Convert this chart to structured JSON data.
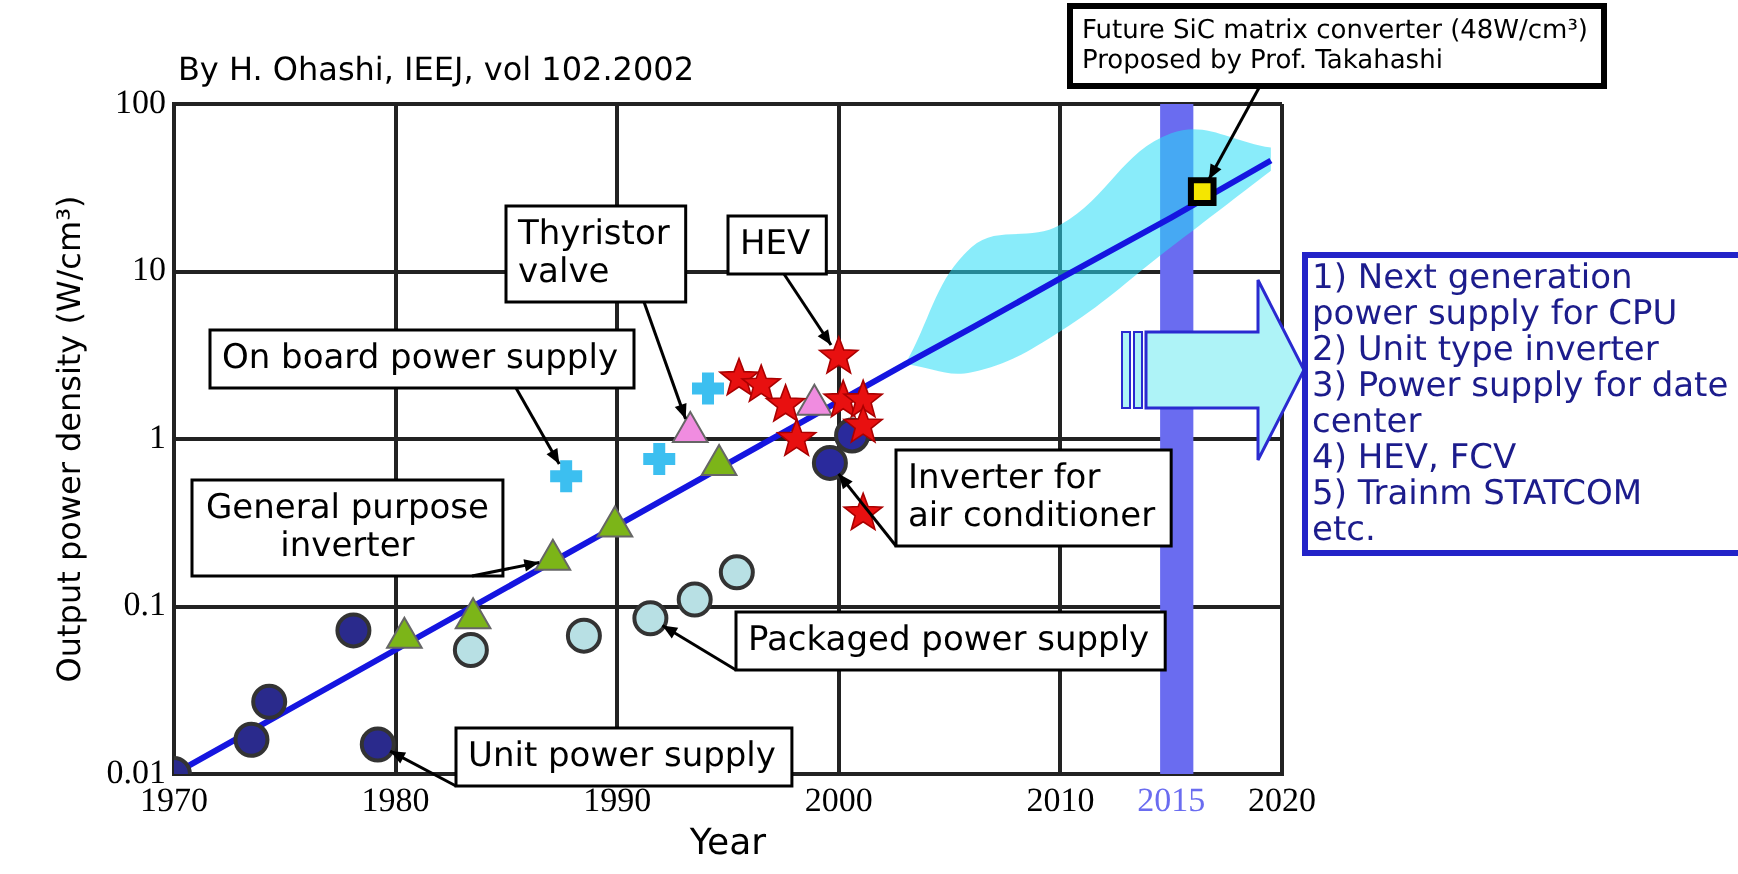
{
  "chart_data": {
    "type": "scatter",
    "title": "By H. Ohashi, IEEJ, vol 102.2002",
    "xlabel": "Year",
    "ylabel": "Output power density (W/cm³)",
    "log": "y",
    "grid": true,
    "legend": false,
    "xlim": [
      1970,
      2020
    ],
    "xticks": [
      1970,
      1980,
      1990,
      2000,
      2010,
      2015,
      2020
    ],
    "ylim": [
      0.01,
      100
    ],
    "yticks": [
      0.01,
      0.1,
      1,
      10,
      100
    ],
    "bands": [
      {
        "axis": "x",
        "from": 2014.5,
        "to": 2016,
        "color": "#6a6cf0"
      }
    ],
    "series": [
      {
        "type": "scatter",
        "marker": "circle",
        "color": "#2a2a8c",
        "x": [
          1970,
          1973.5,
          1974.3,
          1978.1,
          1979.2
        ],
        "values": [
          0.01,
          0.016,
          0.027,
          0.072,
          0.015
        ]
      },
      {
        "type": "scatter",
        "marker": "triangle",
        "color": "#7cb518",
        "x": [
          1980.4,
          1983.5,
          1987.1,
          1989.9,
          1994.6
        ],
        "values": [
          0.065,
          0.085,
          0.19,
          0.3,
          0.7
        ]
      },
      {
        "type": "scatter",
        "marker": "circle",
        "color": "#b8e0e4",
        "x": [
          1983.4,
          1988.5,
          1991.5,
          1993.5,
          1995.4
        ],
        "values": [
          0.055,
          0.067,
          0.085,
          0.11,
          0.16
        ]
      },
      {
        "type": "scatter",
        "marker": "cross",
        "color": "#3cbff0",
        "x": [
          1987.7,
          1991.9,
          1994.1
        ],
        "values": [
          0.6,
          0.76,
          2.0
        ]
      },
      {
        "type": "scatter",
        "marker": "triangle",
        "color": "#f08ce0",
        "x": [
          1993.3,
          1998.9
        ],
        "values": [
          1.1,
          1.6
        ]
      },
      {
        "type": "scatter",
        "marker": "star",
        "color": "#e81010",
        "x": [
          1995.5,
          1996.5,
          1997.6,
          1998.1,
          2000,
          2000.2,
          2001.1,
          2001.1,
          2001.1
        ],
        "values": [
          2.3,
          2.1,
          1.6,
          1.0,
          3.1,
          1.7,
          1.7,
          1.2,
          0.36
        ]
      },
      {
        "type": "scatter",
        "marker": "circle",
        "color": "#2a2a9c",
        "x": [
          1999.6,
          2000.6
        ],
        "values": [
          0.72,
          1.05
        ]
      },
      {
        "type": "scatter",
        "marker": "square",
        "color": "#f5e600",
        "x": [
          2016.4
        ],
        "values": [
          30
        ]
      },
      {
        "type": "line",
        "marker": "none",
        "color": "#1515e0",
        "x": [
          1970,
          2003,
          2006,
          2010,
          2015,
          2019.5
        ],
        "values": [
          0.01,
          2.8,
          4.6,
          9.1,
          21,
          46
        ],
        "lower": [
          null,
          2.8,
          2.5,
          4.4,
          14,
          40
        ],
        "upper": [
          null,
          2.8,
          14,
          19,
          67,
          55
        ]
      }
    ],
    "annotations": [
      {
        "text": "On board power supply",
        "x": 1987.7,
        "y": 0.6
      },
      {
        "text": "General purpose\ninverter",
        "x": 1987.1,
        "y": 0.19
      },
      {
        "text": "Thyristor\nvalve",
        "x": 1993.3,
        "y": 1.1
      },
      {
        "text": "HEV",
        "x": 2000,
        "y": 3.1
      },
      {
        "text": "Inverter for\nair conditioner",
        "x": 1999.6,
        "y": 0.72
      },
      {
        "text": "Packaged power supply",
        "x": 1991.5,
        "y": 0.085
      },
      {
        "text": "Unit power supply",
        "x": 1979.2,
        "y": 0.015
      },
      {
        "text": "Future SiC matrix converter (48W/cm³)\nProposed by Prof. Takahashi",
        "x": 2016.4,
        "y": 30
      },
      "1) Next generation\npower supply for CPU\n2) Unit type inverter\n3) Power supply for date\ncenter\n4) HEV, FCV\n5) Trainm STATCOM\netc."
    ]
  }
}
